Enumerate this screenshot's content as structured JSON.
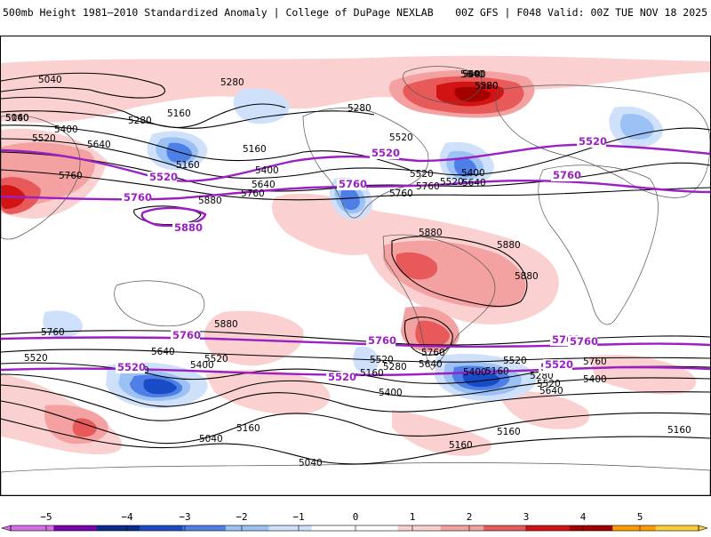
{
  "header": {
    "title_left": "500mb Height 1981–2010 Standardized Anomaly | College of DuPage NEXLAB",
    "title_right": "00Z GFS | F048 Valid: 00Z TUE NOV 18 2025"
  },
  "colors": {
    "contour_black": "#000000",
    "contour_purple": "#9c1fc4",
    "land_border": "#555555",
    "anom_pos": [
      "#fbd0d0",
      "#f4a1a1",
      "#e85a5a",
      "#d11313",
      "#a40000",
      "#ff9a00",
      "#ffcc33"
    ],
    "anom_neg": [
      "#cfe0fb",
      "#9cc1f5",
      "#4d7fe6",
      "#1a4bc7",
      "#0b2a8f",
      "#7a00b0",
      "#d46ee6"
    ]
  },
  "legend": {
    "ticks": [
      "−5",
      "−4",
      "−3",
      "−2",
      "−1",
      "0",
      "1",
      "2",
      "3",
      "4",
      "5"
    ],
    "bin_colors": [
      "#d46ee6",
      "#7a00b0",
      "#0b2a8f",
      "#1a4bc7",
      "#4d7fe6",
      "#9cc1f5",
      "#cfe0fb",
      "#ffffff",
      "#ffffff",
      "#fbd0d0",
      "#f4a1a1",
      "#e85a5a",
      "#d11313",
      "#a40000",
      "#ff9a00",
      "#ffcc33"
    ]
  },
  "contour_labels": {
    "black": [
      "5040",
      "5280",
      "5160",
      "5400",
      "5280",
      "5520",
      "5640",
      "5760",
      "5160",
      "5160",
      "5520",
      "5400",
      "5640",
      "5760",
      "5280",
      "5520",
      "5760",
      "5640",
      "5400",
      "5520",
      "5640",
      "5880",
      "5880",
      "5880",
      "5880",
      "5760",
      "5640",
      "5520",
      "5400",
      "5280",
      "5160",
      "5040",
      "5760",
      "5520",
      "5640",
      "5520",
      "5400",
      "5280",
      "5160",
      "5040",
      "5880",
      "5760",
      "5640",
      "5520",
      "5280",
      "5400",
      "5160",
      "5160",
      "5160",
      "5040",
      "5160",
      "5160",
      "5280",
      "5400",
      "5520",
      "5640",
      "5760",
      "5520",
      "5400",
      "5280"
    ],
    "purple": [
      "5520",
      "5520",
      "5520",
      "5520",
      "5760",
      "5760",
      "5760",
      "5760",
      "5880",
      "5760",
      "5760",
      "5760",
      "5520",
      "5520",
      "5520"
    ]
  }
}
